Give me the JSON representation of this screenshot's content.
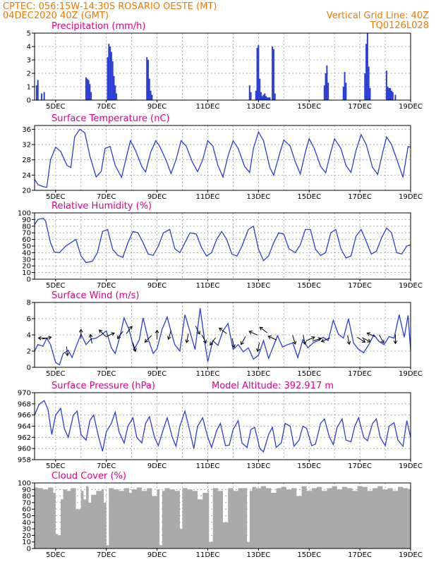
{
  "header": {
    "left_line1": "CPTEC:  056:15W-14:30S  ROSARIO OESTE (MT)",
    "left_line2": "04DEC2020 40Z (GMT)",
    "right_line1": "Vertical Grid Line: 40Z",
    "right_line2": "TQ0126L028"
  },
  "colors": {
    "series": "#2b3fd6",
    "cloud": "#aaaaaa",
    "header": "#f07800",
    "titles": "#e0008a"
  },
  "x_axis": {
    "range_days": [
      4.17,
      19.0
    ],
    "tick_days": [
      5,
      7,
      9,
      11,
      13,
      15,
      17,
      19
    ],
    "tick_labels": [
      "5DEC",
      "7DEC",
      "9DEC",
      "11DEC",
      "13DEC",
      "15DEC",
      "17DEC",
      "19DEC"
    ],
    "vertical_grid_days": [
      5,
      6,
      7,
      8,
      9,
      10,
      11,
      12,
      13,
      14,
      15,
      16,
      17,
      18
    ]
  },
  "chart_data": [
    {
      "type": "bar",
      "title": "Precipitation (mm/h)",
      "ylim": [
        0,
        5
      ],
      "yticks": [
        0,
        1,
        2,
        3,
        4,
        5
      ],
      "x": [
        4.25,
        4.3,
        4.45,
        4.55,
        6.2,
        6.25,
        6.3,
        6.35,
        6.4,
        7.05,
        7.1,
        7.15,
        7.2,
        7.25,
        7.3,
        7.35,
        7.4,
        8.6,
        8.65,
        8.7,
        8.75,
        8.8,
        12.65,
        12.7,
        12.9,
        12.95,
        13.0,
        13.05,
        13.1,
        13.15,
        13.2,
        13.25,
        13.3,
        13.35,
        13.4,
        13.45,
        13.55,
        13.6,
        13.65,
        15.6,
        15.65,
        15.7,
        15.75,
        16.35,
        16.4,
        16.45,
        17.2,
        17.25,
        17.3,
        17.35,
        17.4,
        18.05,
        18.1,
        18.15,
        18.2,
        18.25,
        18.3,
        18.4
      ],
      "values": [
        1.1,
        1.5,
        0.5,
        0.6,
        1.7,
        1.6,
        1.5,
        1.2,
        0.6,
        3.2,
        4.2,
        4.0,
        3.6,
        2.9,
        1.8,
        1.1,
        0.5,
        3.2,
        3.0,
        1.6,
        0.7,
        0.4,
        1.1,
        0.6,
        0.7,
        3.9,
        4.1,
        1.6,
        0.6,
        0.3,
        0.4,
        0.5,
        0.3,
        0.2,
        0.2,
        0.2,
        4.0,
        3.8,
        0.5,
        1.1,
        2.0,
        2.6,
        1.3,
        1.0,
        2.1,
        1.3,
        2.0,
        4.2,
        5.0,
        2.5,
        0.9,
        2.2,
        1.0,
        0.9,
        0.9,
        0.7,
        0.6,
        0.4
      ]
    },
    {
      "type": "line",
      "title": "Surface Temperature (nC)",
      "ylim": [
        20,
        37
      ],
      "yticks": [
        20,
        24,
        28,
        32,
        36
      ],
      "x": [
        4.17,
        4.3,
        4.5,
        4.65,
        4.8,
        5.0,
        5.2,
        5.45,
        5.6,
        5.75,
        5.95,
        6.15,
        6.35,
        6.6,
        6.8,
        6.95,
        7.15,
        7.35,
        7.6,
        7.8,
        7.95,
        8.15,
        8.4,
        8.55,
        8.75,
        8.95,
        9.1,
        9.35,
        9.55,
        9.75,
        9.95,
        10.15,
        10.4,
        10.6,
        10.8,
        11.0,
        11.2,
        11.4,
        11.6,
        11.8,
        12.0,
        12.2,
        12.45,
        12.65,
        12.8,
        13.0,
        13.2,
        13.45,
        13.6,
        13.85,
        14.0,
        14.25,
        14.45,
        14.65,
        14.85,
        15.0,
        15.2,
        15.45,
        15.65,
        15.85,
        16.0,
        16.25,
        16.45,
        16.65,
        16.85,
        17.05,
        17.25,
        17.5,
        17.7,
        17.9,
        18.05,
        18.25,
        18.5,
        18.7,
        18.9,
        19.0
      ],
      "values": [
        22.9,
        21.5,
        21.0,
        20.8,
        28.0,
        31.3,
        30.2,
        26.5,
        26.0,
        34.0,
        36.0,
        35.1,
        29.0,
        23.5,
        25.0,
        31.0,
        31.5,
        26.5,
        23.4,
        29.0,
        33.0,
        30.5,
        26.2,
        24.8,
        30.0,
        33.0,
        31.6,
        28.0,
        24.4,
        28.0,
        33.0,
        31.6,
        27.3,
        24.9,
        28.0,
        33.0,
        31.6,
        26.5,
        23.5,
        29.0,
        33.0,
        31.0,
        26.3,
        24.7,
        31.0,
        35.3,
        33.0,
        26.0,
        24.0,
        30.0,
        33.2,
        31.6,
        27.5,
        24.3,
        30.0,
        33.5,
        31.0,
        26.3,
        24.6,
        30.0,
        33.5,
        31.0,
        26.5,
        24.7,
        30.5,
        34.6,
        32.0,
        26.0,
        24.2,
        30.0,
        34.0,
        32.0,
        27.3,
        23.4,
        31.5,
        31.3
      ]
    },
    {
      "type": "line",
      "title": "Relative Humidity (%)",
      "ylim": [
        0,
        100
      ],
      "yticks": [
        0,
        10,
        20,
        30,
        40,
        50,
        60,
        70,
        80,
        90,
        100
      ],
      "x": [
        4.17,
        4.3,
        4.5,
        4.6,
        4.8,
        4.95,
        5.15,
        5.4,
        5.6,
        5.8,
        6.0,
        6.2,
        6.45,
        6.65,
        6.85,
        7.05,
        7.25,
        7.45,
        7.65,
        7.85,
        8.05,
        8.25,
        8.45,
        8.65,
        8.85,
        9.05,
        9.25,
        9.5,
        9.7,
        9.9,
        10.1,
        10.3,
        10.55,
        10.75,
        10.95,
        11.15,
        11.35,
        11.55,
        11.75,
        11.95,
        12.15,
        12.35,
        12.6,
        12.8,
        13.0,
        13.2,
        13.4,
        13.6,
        13.8,
        14.0,
        14.2,
        14.45,
        14.65,
        14.85,
        15.05,
        15.25,
        15.45,
        15.65,
        15.85,
        16.05,
        16.25,
        16.45,
        16.65,
        16.85,
        17.05,
        17.25,
        17.45,
        17.65,
        17.85,
        18.05,
        18.25,
        18.45,
        18.65,
        18.85,
        19.0
      ],
      "values": [
        82,
        90,
        92,
        88,
        55,
        41,
        40,
        50,
        55,
        60,
        35,
        25,
        27,
        40,
        72,
        75,
        45,
        36,
        33,
        55,
        72,
        70,
        55,
        38,
        36,
        50,
        70,
        75,
        46,
        40,
        55,
        70,
        68,
        48,
        35,
        40,
        60,
        72,
        60,
        38,
        35,
        50,
        75,
        80,
        45,
        28,
        35,
        55,
        70,
        68,
        46,
        40,
        52,
        75,
        75,
        45,
        36,
        40,
        70,
        75,
        46,
        32,
        35,
        65,
        75,
        57,
        38,
        42,
        62,
        77,
        70,
        40,
        38,
        50,
        52
      ]
    },
    {
      "type": "line",
      "title": "Surface Wind (m/s)",
      "ylim": [
        0,
        8
      ],
      "yticks": [
        0,
        2,
        4,
        6,
        8
      ],
      "x": [
        4.17,
        4.3,
        4.5,
        4.65,
        4.8,
        5.0,
        5.15,
        5.3,
        5.5,
        5.65,
        5.8,
        6.0,
        6.2,
        6.4,
        6.6,
        6.8,
        7.0,
        7.2,
        7.35,
        7.55,
        7.7,
        7.9,
        8.1,
        8.3,
        8.45,
        8.65,
        8.85,
        9.0,
        9.2,
        9.4,
        9.55,
        9.7,
        9.9,
        10.1,
        10.3,
        10.5,
        10.7,
        10.9,
        11.0,
        11.2,
        11.4,
        11.6,
        11.8,
        12.0,
        12.2,
        12.4,
        12.6,
        12.8,
        13.0,
        13.2,
        13.4,
        13.55,
        13.75,
        13.95,
        14.15,
        14.35,
        14.55,
        14.75,
        14.95,
        15.15,
        15.35,
        15.55,
        15.75,
        15.95,
        16.15,
        16.35,
        16.55,
        16.75,
        16.95,
        17.15,
        17.35,
        17.55,
        17.75,
        17.95,
        18.15,
        18.35,
        18.55,
        18.75,
        18.9,
        19.0
      ],
      "values": [
        2.0,
        2.8,
        2.6,
        3.6,
        2.8,
        0.6,
        0.3,
        1.7,
        2.1,
        1.2,
        2.5,
        4.1,
        2.8,
        3.5,
        3.6,
        4.0,
        4.5,
        2.4,
        1.7,
        4.0,
        6.1,
        4.6,
        2.2,
        3.4,
        6.1,
        3.5,
        1.7,
        2.3,
        4.7,
        6.2,
        4.4,
        2.8,
        2.0,
        6.5,
        4.4,
        2.2,
        7.3,
        2.7,
        0.7,
        3.3,
        2.7,
        4.5,
        5.4,
        2.2,
        2.8,
        1.9,
        2.4,
        1.0,
        1.5,
        3.3,
        1.1,
        2.3,
        3.9,
        2.5,
        2.8,
        3.0,
        1.2,
        3.4,
        2.4,
        3.0,
        3.3,
        3.7,
        3.3,
        5.8,
        4.1,
        3.6,
        6.0,
        3.0,
        2.2,
        1.8,
        2.8,
        4.0,
        3.2,
        2.8,
        3.8,
        3.6,
        6.5,
        3.7,
        6.4,
        2.1
      ]
    },
    {
      "type": "line",
      "title": "Surface Pressure (hPa)",
      "annotation": "Model Altitude: 392.917 m",
      "ylim": [
        958,
        970
      ],
      "yticks": [
        958,
        960,
        962,
        964,
        966,
        968,
        970
      ],
      "x": [
        4.17,
        4.35,
        4.55,
        4.7,
        4.85,
        5.0,
        5.2,
        5.35,
        5.5,
        5.7,
        5.85,
        6.0,
        6.2,
        6.35,
        6.5,
        6.7,
        6.85,
        7.0,
        7.2,
        7.35,
        7.5,
        7.7,
        7.85,
        8.05,
        8.2,
        8.4,
        8.55,
        8.7,
        8.9,
        9.05,
        9.25,
        9.4,
        9.6,
        9.75,
        9.9,
        10.1,
        10.3,
        10.45,
        10.6,
        10.8,
        11.0,
        11.15,
        11.35,
        11.5,
        11.7,
        11.85,
        12.0,
        12.2,
        12.35,
        12.55,
        12.7,
        12.85,
        13.05,
        13.2,
        13.4,
        13.55,
        13.7,
        13.9,
        14.05,
        14.25,
        14.4,
        14.6,
        14.75,
        14.9,
        15.1,
        15.25,
        15.45,
        15.6,
        15.8,
        15.95,
        16.1,
        16.3,
        16.45,
        16.65,
        16.8,
        16.95,
        17.15,
        17.3,
        17.5,
        17.65,
        17.8,
        18.0,
        18.15,
        18.35,
        18.5,
        18.7,
        18.85,
        19.0
      ],
      "values": [
        966.0,
        967.9,
        968.6,
        967.0,
        962.5,
        966.0,
        967.2,
        963.5,
        962.0,
        966.0,
        966.7,
        962.5,
        961.5,
        965.0,
        966.0,
        962.0,
        959.5,
        963.0,
        964.5,
        966.5,
        963.0,
        961.0,
        964.0,
        965.5,
        962.0,
        961.0,
        964.5,
        965.7,
        962.0,
        960.5,
        963.5,
        965.5,
        962.0,
        960.4,
        964.0,
        966.7,
        963.0,
        960.0,
        964.0,
        965.5,
        962.0,
        960.2,
        963.2,
        964.5,
        960.5,
        960.6,
        963.4,
        965.0,
        961.0,
        960.2,
        963.4,
        963.8,
        960.0,
        959.4,
        962.5,
        963.8,
        960.2,
        961.0,
        964.5,
        964.0,
        960.4,
        961.5,
        964.0,
        963.6,
        960.5,
        960.8,
        964.5,
        965.3,
        962.0,
        960.7,
        963.8,
        965.3,
        961.5,
        961.2,
        964.0,
        965.5,
        962.0,
        961.4,
        964.5,
        965.3,
        962.0,
        960.5,
        964.0,
        964.6,
        961.5,
        960.4,
        965.0,
        962.0
      ]
    },
    {
      "type": "area",
      "title": "Cloud Cover (%)",
      "ylim": [
        0,
        100
      ],
      "yticks": [
        0,
        10,
        20,
        30,
        40,
        50,
        60,
        70,
        80,
        90,
        100
      ],
      "x": [
        4.17,
        4.3,
        4.5,
        4.7,
        4.9,
        5.0,
        5.1,
        5.2,
        5.3,
        5.45,
        5.6,
        5.8,
        6.0,
        6.1,
        6.2,
        6.3,
        6.4,
        6.6,
        6.8,
        6.9,
        7.0,
        7.1,
        7.3,
        7.5,
        7.7,
        7.9,
        8.0,
        8.2,
        8.4,
        8.6,
        8.8,
        9.0,
        9.1,
        9.2,
        9.3,
        9.5,
        9.7,
        9.9,
        10.0,
        10.2,
        10.4,
        10.6,
        10.8,
        11.0,
        11.05,
        11.2,
        11.4,
        11.6,
        11.8,
        12.0,
        12.2,
        12.4,
        12.55,
        12.65,
        12.75,
        12.9,
        13.1,
        13.3,
        13.5,
        13.7,
        13.9,
        14.1,
        14.3,
        14.5,
        14.7,
        14.9,
        15.1,
        15.3,
        15.5,
        15.7,
        15.9,
        16.1,
        16.3,
        16.5,
        16.7,
        16.9,
        17.1,
        17.3,
        17.5,
        17.7,
        17.9,
        18.1,
        18.3,
        18.5,
        18.7,
        18.9,
        19.0
      ],
      "values": [
        93,
        92,
        90,
        93,
        85,
        22,
        20,
        75,
        90,
        88,
        92,
        60,
        88,
        75,
        95,
        70,
        82,
        88,
        90,
        70,
        5,
        92,
        90,
        88,
        92,
        85,
        90,
        93,
        88,
        92,
        80,
        90,
        5,
        88,
        92,
        90,
        88,
        30,
        92,
        90,
        88,
        75,
        85,
        88,
        10,
        92,
        88,
        40,
        92,
        88,
        92,
        92,
        10,
        88,
        94,
        92,
        95,
        92,
        85,
        92,
        94,
        90,
        92,
        80,
        95,
        88,
        92,
        94,
        88,
        92,
        95,
        90,
        94,
        92,
        88,
        95,
        94,
        88,
        92,
        95,
        90,
        92,
        88,
        94,
        92,
        90,
        88
      ]
    }
  ],
  "wind_arrows": [
    {
      "day": 4.5,
      "speed": 3.6,
      "u": -1.0,
      "v": 0.0
    },
    {
      "day": 4.65,
      "speed": 3.6,
      "u": 1.0,
      "v": 0.2
    },
    {
      "day": 5.45,
      "speed": 2.0,
      "u": 0.1,
      "v": -1.0
    },
    {
      "day": 6.0,
      "speed": 4.1,
      "u": 0.0,
      "v": 1.0
    },
    {
      "day": 6.4,
      "speed": 3.5,
      "u": -0.2,
      "v": 1.0
    },
    {
      "day": 6.85,
      "speed": 4.2,
      "u": -0.7,
      "v": 0.7
    },
    {
      "day": 7.15,
      "speed": 4.0,
      "u": 0.9,
      "v": 0.4
    },
    {
      "day": 7.55,
      "speed": 4.0,
      "u": -0.6,
      "v": -0.8
    },
    {
      "day": 7.9,
      "speed": 4.6,
      "u": 0.6,
      "v": 0.8
    },
    {
      "day": 8.1,
      "speed": 2.5,
      "u": 0.3,
      "v": -1.0
    },
    {
      "day": 8.65,
      "speed": 3.5,
      "u": -0.7,
      "v": -0.7
    },
    {
      "day": 9.0,
      "speed": 4.0,
      "u": 0.0,
      "v": 1.0
    },
    {
      "day": 9.5,
      "speed": 4.0,
      "u": -0.3,
      "v": -1.0
    },
    {
      "day": 10.2,
      "speed": 3.6,
      "u": -0.2,
      "v": -1.0
    },
    {
      "day": 10.6,
      "speed": 4.6,
      "u": 0.5,
      "v": -1.0
    },
    {
      "day": 10.85,
      "speed": 3.5,
      "u": 0.5,
      "v": -1.0
    },
    {
      "day": 11.2,
      "speed": 3.2,
      "u": -0.6,
      "v": -0.8
    },
    {
      "day": 11.6,
      "speed": 4.5,
      "u": -0.8,
      "v": 0.6
    },
    {
      "day": 12.0,
      "speed": 3.0,
      "u": 0.2,
      "v": -1.0
    },
    {
      "day": 12.4,
      "speed": 3.3,
      "u": -0.5,
      "v": -0.9
    },
    {
      "day": 12.8,
      "speed": 4.2,
      "u": -0.9,
      "v": 0.4
    },
    {
      "day": 13.0,
      "speed": 2.5,
      "u": -0.2,
      "v": -1.0
    },
    {
      "day": 13.2,
      "speed": 4.6,
      "u": -0.8,
      "v": 0.6
    },
    {
      "day": 13.55,
      "speed": 3.6,
      "u": -0.9,
      "v": 0.4
    },
    {
      "day": 14.4,
      "speed": 3.4,
      "u": 0.3,
      "v": -1.0
    },
    {
      "day": 14.8,
      "speed": 3.4,
      "u": 0.2,
      "v": -1.0
    },
    {
      "day": 15.05,
      "speed": 3.5,
      "u": 0.9,
      "v": 0.4
    },
    {
      "day": 15.3,
      "speed": 3.4,
      "u": 0.9,
      "v": 0.3
    },
    {
      "day": 15.65,
      "speed": 3.4,
      "u": -0.9,
      "v": -0.4
    },
    {
      "day": 16.55,
      "speed": 3.4,
      "u": 0.2,
      "v": -1.0
    },
    {
      "day": 17.05,
      "speed": 3.4,
      "u": 0.8,
      "v": -0.5
    },
    {
      "day": 17.25,
      "speed": 3.4,
      "u": 0.8,
      "v": -0.4
    },
    {
      "day": 17.45,
      "speed": 4.0,
      "u": -0.9,
      "v": 0.4
    },
    {
      "day": 17.85,
      "speed": 3.5,
      "u": 0.5,
      "v": -0.9
    },
    {
      "day": 18.4,
      "speed": 3.5,
      "u": 0.0,
      "v": -1.0
    }
  ]
}
